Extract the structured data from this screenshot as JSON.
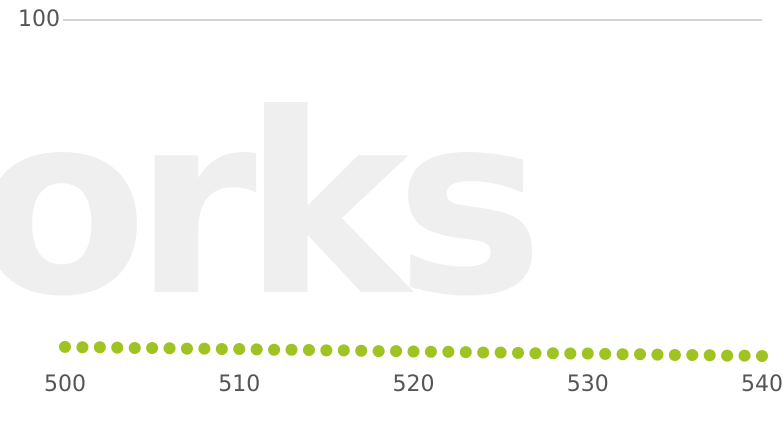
{
  "chart_data": {
    "type": "scatter",
    "watermark": "works",
    "x": [
      500,
      501,
      502,
      503,
      504,
      505,
      506,
      507,
      508,
      509,
      510,
      511,
      512,
      513,
      514,
      515,
      516,
      517,
      518,
      519,
      520,
      521,
      522,
      523,
      524,
      525,
      526,
      527,
      528,
      529,
      530,
      531,
      532,
      533,
      534,
      535,
      536,
      537,
      538,
      539,
      540
    ],
    "series": [
      {
        "color": "#9ec322",
        "values": [
          6.6,
          6.5,
          6.5,
          6.4,
          6.3,
          6.3,
          6.2,
          6.1,
          6.1,
          6.0,
          6.0,
          5.9,
          5.8,
          5.8,
          5.7,
          5.6,
          5.6,
          5.5,
          5.4,
          5.4,
          5.3,
          5.2,
          5.2,
          5.1,
          5.0,
          5.0,
          4.9,
          4.8,
          4.8,
          4.7,
          4.7,
          4.6,
          4.5,
          4.5,
          4.4,
          4.3,
          4.3,
          4.2,
          4.1,
          4.1,
          4.0
        ]
      }
    ],
    "xlim": [
      500,
      540
    ],
    "xticks": [
      500,
      510,
      520,
      530,
      540
    ],
    "ylim": [
      0,
      100
    ],
    "yticks": [
      100
    ],
    "grid": true
  }
}
